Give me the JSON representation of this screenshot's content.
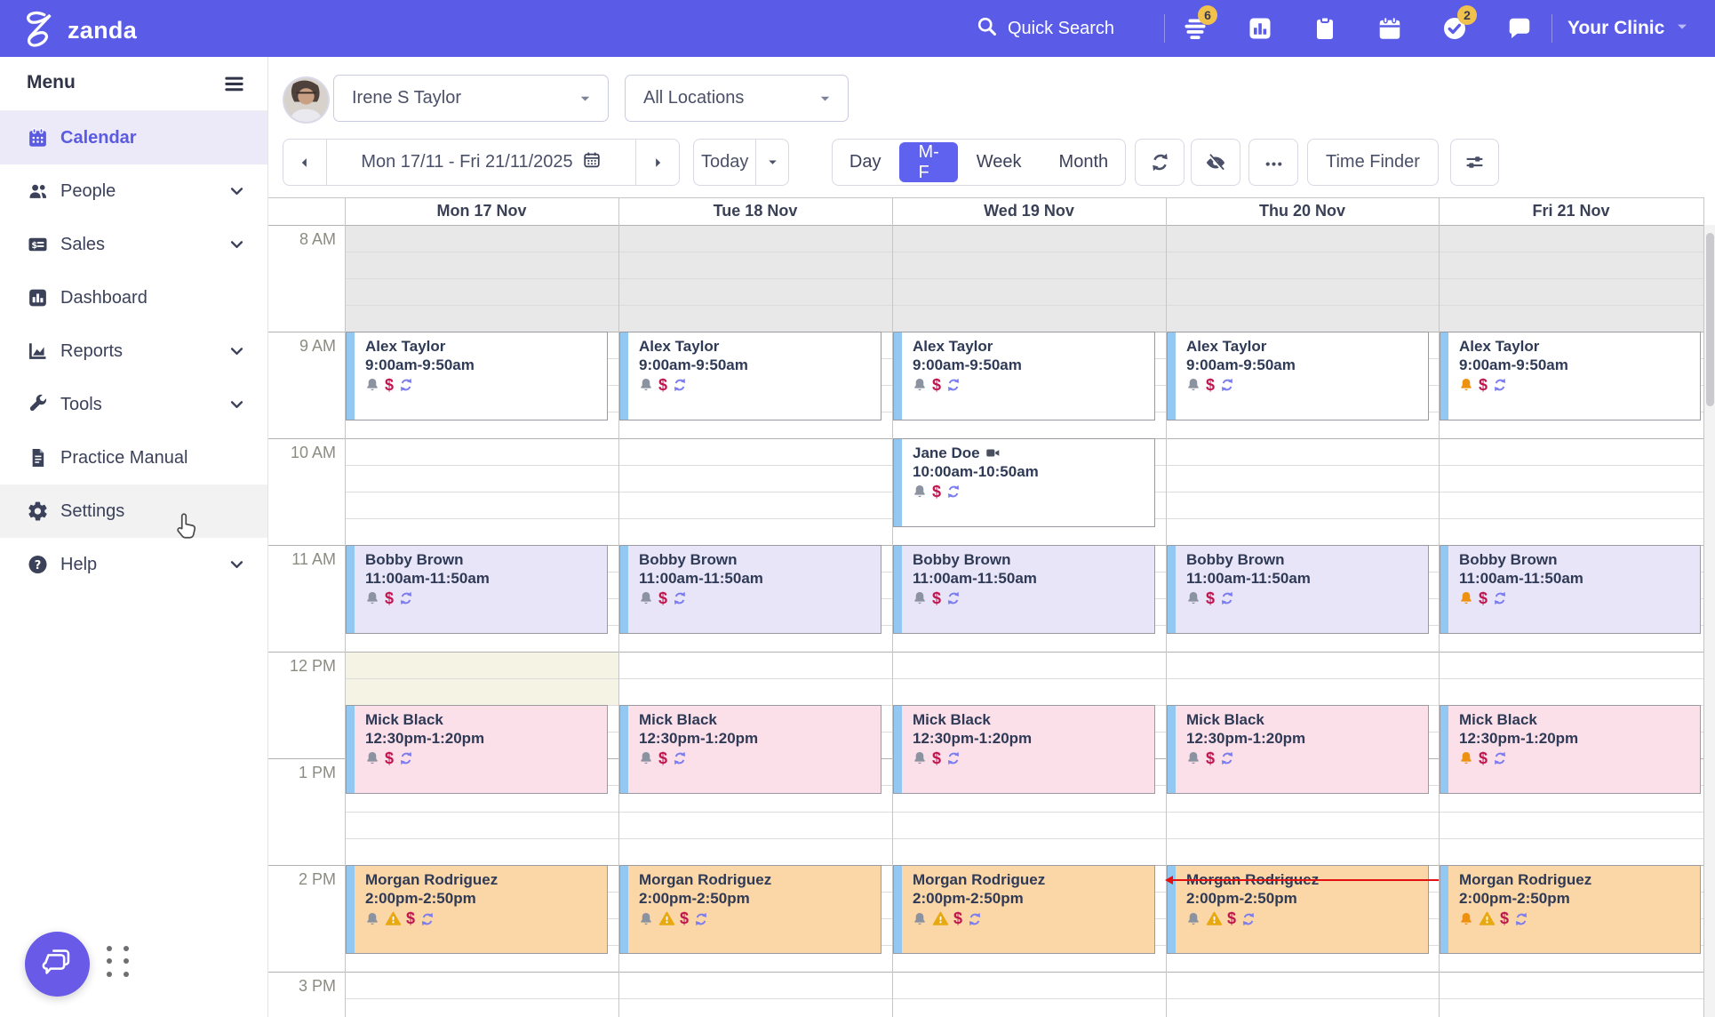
{
  "navbar": {
    "bg_color": "#5A5CE8",
    "logo_text": "zanda",
    "quick_search_label": "Quick Search",
    "clinic_label": "Your Clinic",
    "badge_color": "#F1C14D",
    "icons": [
      {
        "name": "waitlist",
        "badge": "6"
      },
      {
        "name": "bar-chart",
        "badge": null
      },
      {
        "name": "clipboard",
        "badge": null
      },
      {
        "name": "calendar",
        "badge": null
      },
      {
        "name": "check-circle",
        "badge": "2"
      },
      {
        "name": "chat",
        "badge": null
      }
    ]
  },
  "sidebar": {
    "title": "Menu",
    "items": [
      {
        "label": "Calendar",
        "icon": "calendar",
        "active": true,
        "expandable": false,
        "hovered": false
      },
      {
        "label": "People",
        "icon": "people",
        "active": false,
        "expandable": true,
        "hovered": false
      },
      {
        "label": "Sales",
        "icon": "sales",
        "active": false,
        "expandable": true,
        "hovered": false
      },
      {
        "label": "Dashboard",
        "icon": "dashboard",
        "active": false,
        "expandable": false,
        "hovered": false
      },
      {
        "label": "Reports",
        "icon": "reports",
        "active": false,
        "expandable": true,
        "hovered": false
      },
      {
        "label": "Tools",
        "icon": "tools",
        "active": false,
        "expandable": true,
        "hovered": false
      },
      {
        "label": "Practice Manual",
        "icon": "document",
        "active": false,
        "expandable": false,
        "hovered": false
      },
      {
        "label": "Settings",
        "icon": "gear",
        "active": false,
        "expandable": false,
        "hovered": true
      },
      {
        "label": "Help",
        "icon": "help",
        "active": false,
        "expandable": true,
        "hovered": false
      }
    ]
  },
  "toolbar": {
    "practitioner": "Irene S Taylor",
    "location": "All Locations",
    "date_range": "Mon 17/11 - Fri 21/11/2025",
    "today_label": "Today",
    "views": [
      {
        "label": "Day",
        "active": false
      },
      {
        "label": "M-F",
        "active": true
      },
      {
        "label": "Week",
        "active": false
      },
      {
        "label": "Month",
        "active": false
      }
    ],
    "time_finder_label": "Time Finder",
    "active_view_color": "#5F62EE"
  },
  "calendar": {
    "days": [
      "Mon 17 Nov",
      "Tue 18 Nov",
      "Wed 19 Nov",
      "Thu 20 Nov",
      "Fri 21 Nov"
    ],
    "hours": [
      "8 AM",
      "9 AM",
      "10 AM",
      "11 AM",
      "12 PM",
      "1 PM",
      "2 PM",
      "3 PM"
    ],
    "nonworking_band": {
      "start": "8:00am",
      "end": "9:00am",
      "color": "#E8E8E8"
    },
    "lunch_block": {
      "day_index": 0,
      "start": "12:00pm",
      "end": "12:30pm",
      "color": "#F5F3E3"
    },
    "current_time_marker": {
      "day_index": 3,
      "minutes_after_8am": 368,
      "color": "#E31212"
    },
    "appointments": [
      {
        "day_index": 0,
        "client": "Alex Taylor",
        "time": "9:00am-9:50am",
        "start_min": 60,
        "duration_min": 50,
        "color": "#FFFFFF",
        "bell": "gray",
        "warning": false,
        "video": false
      },
      {
        "day_index": 0,
        "client": "Bobby Brown",
        "time": "11:00am-11:50am",
        "start_min": 180,
        "duration_min": 50,
        "color": "#E9E5F8",
        "bell": "gray",
        "warning": false,
        "video": false
      },
      {
        "day_index": 0,
        "client": "Mick Black",
        "time": "12:30pm-1:20pm",
        "start_min": 270,
        "duration_min": 50,
        "color": "#FBDFE9",
        "bell": "gray",
        "warning": false,
        "video": false
      },
      {
        "day_index": 0,
        "client": "Morgan Rodriguez",
        "time": "2:00pm-2:50pm",
        "start_min": 360,
        "duration_min": 50,
        "color": "#FBD6A6",
        "bell": "gray",
        "warning": true,
        "video": false
      },
      {
        "day_index": 1,
        "client": "Alex Taylor",
        "time": "9:00am-9:50am",
        "start_min": 60,
        "duration_min": 50,
        "color": "#FFFFFF",
        "bell": "gray",
        "warning": false,
        "video": false
      },
      {
        "day_index": 1,
        "client": "Bobby Brown",
        "time": "11:00am-11:50am",
        "start_min": 180,
        "duration_min": 50,
        "color": "#E9E5F8",
        "bell": "gray",
        "warning": false,
        "video": false
      },
      {
        "day_index": 1,
        "client": "Mick Black",
        "time": "12:30pm-1:20pm",
        "start_min": 270,
        "duration_min": 50,
        "color": "#FBDFE9",
        "bell": "gray",
        "warning": false,
        "video": false
      },
      {
        "day_index": 1,
        "client": "Morgan Rodriguez",
        "time": "2:00pm-2:50pm",
        "start_min": 360,
        "duration_min": 50,
        "color": "#FBD6A6",
        "bell": "gray",
        "warning": true,
        "video": false
      },
      {
        "day_index": 2,
        "client": "Alex Taylor",
        "time": "9:00am-9:50am",
        "start_min": 60,
        "duration_min": 50,
        "color": "#FFFFFF",
        "bell": "gray",
        "warning": false,
        "video": false
      },
      {
        "day_index": 2,
        "client": "Jane Doe",
        "time": "10:00am-10:50am",
        "start_min": 120,
        "duration_min": 50,
        "color": "#FFFFFF",
        "bell": "gray",
        "warning": false,
        "video": true
      },
      {
        "day_index": 2,
        "client": "Bobby Brown",
        "time": "11:00am-11:50am",
        "start_min": 180,
        "duration_min": 50,
        "color": "#E9E5F8",
        "bell": "gray",
        "warning": false,
        "video": false
      },
      {
        "day_index": 2,
        "client": "Mick Black",
        "time": "12:30pm-1:20pm",
        "start_min": 270,
        "duration_min": 50,
        "color": "#FBDFE9",
        "bell": "gray",
        "warning": false,
        "video": false
      },
      {
        "day_index": 2,
        "client": "Morgan Rodriguez",
        "time": "2:00pm-2:50pm",
        "start_min": 360,
        "duration_min": 50,
        "color": "#FBD6A6",
        "bell": "gray",
        "warning": true,
        "video": false
      },
      {
        "day_index": 3,
        "client": "Alex Taylor",
        "time": "9:00am-9:50am",
        "start_min": 60,
        "duration_min": 50,
        "color": "#FFFFFF",
        "bell": "gray",
        "warning": false,
        "video": false
      },
      {
        "day_index": 3,
        "client": "Bobby Brown",
        "time": "11:00am-11:50am",
        "start_min": 180,
        "duration_min": 50,
        "color": "#E9E5F8",
        "bell": "gray",
        "warning": false,
        "video": false
      },
      {
        "day_index": 3,
        "client": "Mick Black",
        "time": "12:30pm-1:20pm",
        "start_min": 270,
        "duration_min": 50,
        "color": "#FBDFE9",
        "bell": "gray",
        "warning": false,
        "video": false
      },
      {
        "day_index": 3,
        "client": "Morgan Rodriguez",
        "time": "2:00pm-2:50pm",
        "start_min": 360,
        "duration_min": 50,
        "color": "#FBD6A6",
        "bell": "gray",
        "warning": true,
        "video": false
      },
      {
        "day_index": 4,
        "client": "Alex Taylor",
        "time": "9:00am-9:50am",
        "start_min": 60,
        "duration_min": 50,
        "color": "#FFFFFF",
        "bell": "orange",
        "warning": false,
        "video": false
      },
      {
        "day_index": 4,
        "client": "Bobby Brown",
        "time": "11:00am-11:50am",
        "start_min": 180,
        "duration_min": 50,
        "color": "#E9E5F8",
        "bell": "orange",
        "warning": false,
        "video": false
      },
      {
        "day_index": 4,
        "client": "Mick Black",
        "time": "12:30pm-1:20pm",
        "start_min": 270,
        "duration_min": 50,
        "color": "#FBDFE9",
        "bell": "orange",
        "warning": false,
        "video": false
      },
      {
        "day_index": 4,
        "client": "Morgan Rodriguez",
        "time": "2:00pm-2:50pm",
        "start_min": 360,
        "duration_min": 50,
        "color": "#FBD6A6",
        "bell": "orange",
        "warning": true,
        "video": false
      }
    ]
  },
  "icon_colors": {
    "bell_gray": "#8B92A0",
    "bell_orange": "#EE9111",
    "warning_amber": "#E7A90F",
    "dollar_crimson": "#C0164F",
    "repeat_purple": "#7A7CF0"
  }
}
